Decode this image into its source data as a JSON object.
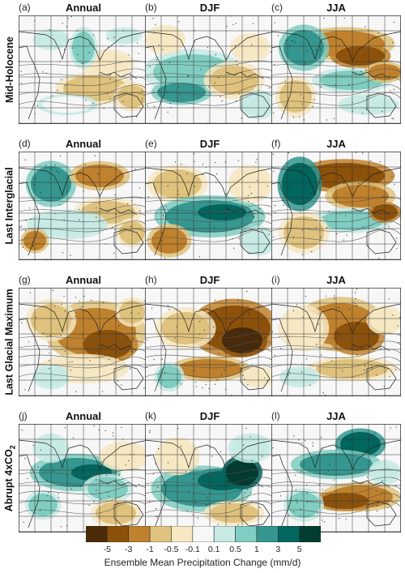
{
  "rows": [
    {
      "label": "Mid-Holocene",
      "panels": [
        {
          "letter": "(a)",
          "season": "Annual",
          "pattern": "mh_ann"
        },
        {
          "letter": "(b)",
          "season": "DJF",
          "pattern": "mh_djf"
        },
        {
          "letter": "(c)",
          "season": "JJA",
          "pattern": "mh_jja"
        }
      ]
    },
    {
      "label": "Last Interglacial",
      "panels": [
        {
          "letter": "(d)",
          "season": "Annual",
          "pattern": "lig_ann"
        },
        {
          "letter": "(e)",
          "season": "DJF",
          "pattern": "lig_djf"
        },
        {
          "letter": "(f)",
          "season": "JJA",
          "pattern": "lig_jja"
        }
      ]
    },
    {
      "label": "Last Glacial Maximum",
      "panels": [
        {
          "letter": "(g)",
          "season": "Annual",
          "pattern": "lgm_ann"
        },
        {
          "letter": "(h)",
          "season": "DJF",
          "pattern": "lgm_djf"
        },
        {
          "letter": "(i)",
          "season": "JJA",
          "pattern": "lgm_jja"
        }
      ]
    },
    {
      "label_main": "Abrupt 4xCO",
      "label_sub": "2",
      "panels": [
        {
          "letter": "(j)",
          "season": "Annual",
          "pattern": "co2_ann"
        },
        {
          "letter": "(k)",
          "season": "DJF",
          "pattern": "co2_djf"
        },
        {
          "letter": "(l)",
          "season": "JJA",
          "pattern": "co2_jja"
        }
      ]
    }
  ],
  "colorbar": {
    "title": "Ensemble Mean Precipitation Change (mm/d)",
    "ticks": [
      "-5",
      "-3",
      "-1",
      "-0.5",
      "-0.1",
      "0.1",
      "0.5",
      "1",
      "3",
      "5"
    ],
    "colors": [
      "#4a2a08",
      "#8c510a",
      "#bf812d",
      "#dfc27d",
      "#f6e8c3",
      "#f7f7f7",
      "#c7eae5",
      "#80cdc1",
      "#35978f",
      "#01665e",
      "#003c30"
    ]
  }
}
